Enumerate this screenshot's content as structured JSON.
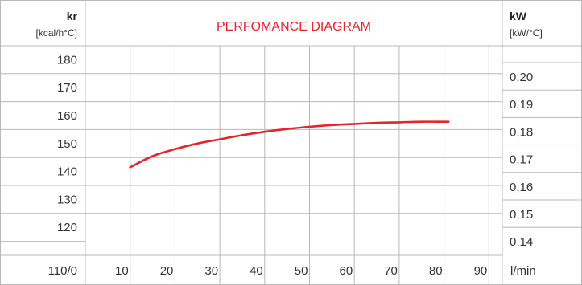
{
  "chart_data": {
    "type": "line",
    "title": "PERFOMANCE DIAGRAM",
    "left_axis": {
      "label": "kr",
      "unit": "[kcal/h°C]",
      "ticks": [
        "180",
        "170",
        "160",
        "150",
        "140",
        "130",
        "120"
      ],
      "ylim": [
        110,
        185
      ]
    },
    "right_axis": {
      "label": "kW",
      "unit": "[kW/°C]",
      "ticks": [
        "0,20",
        "0,19",
        "0,18",
        "0,17",
        "0,16",
        "0,15",
        "0,14"
      ]
    },
    "x_axis": {
      "origin_label": "110/0",
      "ticks": [
        "10",
        "20",
        "30",
        "40",
        "50",
        "60",
        "70",
        "80",
        "90"
      ],
      "unit": "l/min",
      "xlim": [
        0,
        93
      ]
    },
    "series": [
      {
        "x": [
          10,
          15,
          20,
          25,
          30,
          35,
          40,
          45,
          50,
          55,
          60,
          65,
          70,
          75,
          80,
          81
        ],
        "y": [
          141.5,
          145.5,
          148.0,
          150.0,
          151.5,
          153.0,
          154.2,
          155.2,
          156.0,
          156.6,
          157.0,
          157.4,
          157.6,
          157.8,
          157.8,
          157.8
        ]
      }
    ],
    "grid": true,
    "line_color": "#e3262c",
    "accent_color": "#e3262c",
    "border_color": "#b8b8b8"
  }
}
